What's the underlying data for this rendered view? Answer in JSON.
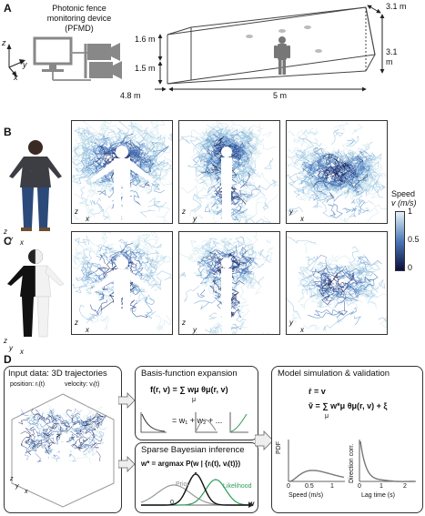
{
  "panel_a": {
    "letter": "A",
    "device_title_line1": "Photonic fence",
    "device_title_line2": "monitoring device",
    "device_title_line3": "(PFMD)",
    "dim_height_upper": "1.6 m",
    "dim_height_lower": "1.5 m",
    "dim_depth": "4.8 m",
    "dim_length": "5 m",
    "dim_width_top": "3.1 m",
    "dim_height_right_line1": "3.1",
    "dim_height_right_line2": "m",
    "axis_z": "z",
    "axis_y": "y",
    "axis_x": "x"
  },
  "panel_b": {
    "letter": "B",
    "views": [
      {
        "v": "z",
        "h": "x"
      },
      {
        "v": "z",
        "h": "y"
      },
      {
        "v": "y",
        "h": "x"
      }
    ],
    "axes_person_v": "z",
    "axes_person_h": "x",
    "axes_person_d": "y"
  },
  "panel_c": {
    "letter": "C",
    "views": [
      {
        "v": "z",
        "h": "x"
      },
      {
        "v": "z",
        "h": "y"
      },
      {
        "v": "y",
        "h": "x"
      }
    ],
    "axes_person_v": "z",
    "axes_person_h": "x",
    "axes_person_d": "y"
  },
  "colorbar": {
    "title": "Speed",
    "unit": "v (m/s)",
    "ticks": [
      "1",
      "0.5",
      "0"
    ],
    "color_high": "#e6f3f6",
    "color_mid": "#4a78b8",
    "color_low": "#0a0f3d"
  },
  "panel_d": {
    "letter": "D",
    "input_title": "Input data: 3D trajectories",
    "input_position": "position: rᵢ(t)",
    "input_velocity": "velocity: vᵢ(t)",
    "basis_title": "Basis-function expansion",
    "basis_eq": "f(r, v) = ∑ wμ θμ(r, v)",
    "basis_sum_index": "μ",
    "basis_expansion": "= w₁ + w₂ + ...",
    "sparse_title": "Sparse Bayesian inference",
    "sparse_eq": "w* = argmax P(w | {rᵢ(t), vᵢ(t)})",
    "sparse_prior": "Prior",
    "sparse_likelihood": "Likelihood",
    "sparse_zero": "0",
    "sparse_axis": "w",
    "model_title": "Model simulation & validation",
    "model_eq1": "ṙ = v",
    "model_eq2": "ṽ = ∑ w*μ θμ(r, v) + ξ",
    "model_sum_index": "μ",
    "plot1_ylabel": "PDF",
    "plot1_xlabel": "Speed (m/s)",
    "plot1_ticks": [
      "0",
      "0.5",
      "1"
    ],
    "plot2_ylabel": "Direction corr.",
    "plot2_xlabel": "Lag time (s)",
    "plot2_ticks": [
      "0",
      "1",
      "2"
    ],
    "axis_z": "z",
    "axis_y": "y",
    "axis_x": "x",
    "prior_color": "#999999",
    "likelihood_color": "#2e9d5a",
    "posterior_color": "#111111"
  }
}
